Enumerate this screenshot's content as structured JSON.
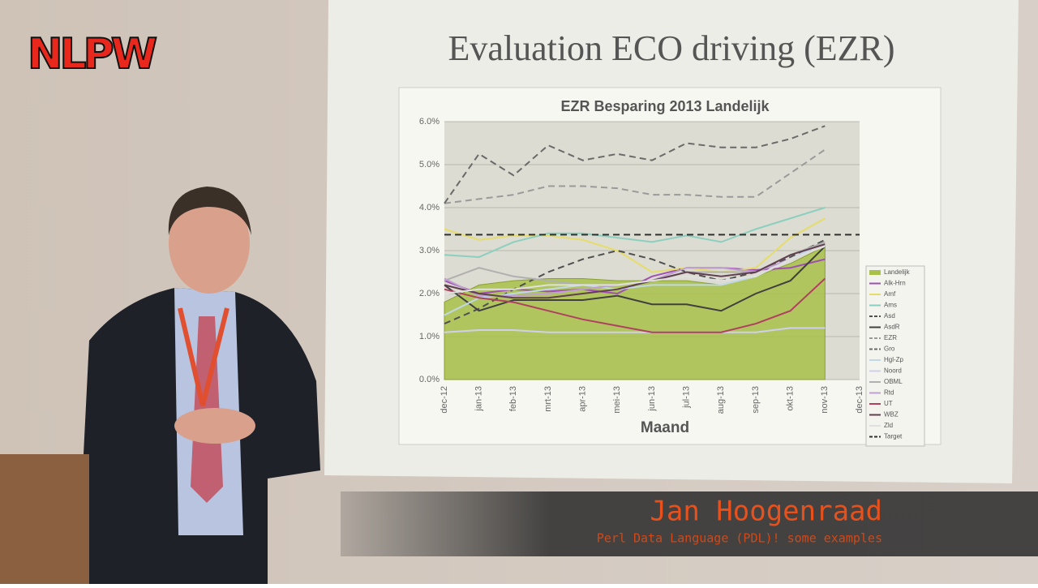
{
  "logo": "NLPW",
  "slide_title": "Evaluation ECO driving  (EZR)",
  "caption": {
    "name": "Jan Hoogenraad",
    "subtitle": "Perl Data Language (PDL)! some examples"
  },
  "chart_data": {
    "type": "line",
    "title": "EZR Besparing 2013 Landelijk",
    "x_label": "Maand",
    "categories": [
      "dec-12",
      "jan-13",
      "feb-13",
      "mrt-13",
      "apr-13",
      "mei-13",
      "jun-13",
      "jul-13",
      "aug-13",
      "sep-13",
      "okt-13",
      "nov-13",
      "dec-13"
    ],
    "ylim": [
      0,
      6
    ],
    "yticks": [
      {
        "value": 0,
        "label": "0.0%"
      },
      {
        "value": 1,
        "label": "1.0%"
      },
      {
        "value": 2,
        "label": "2.0%"
      },
      {
        "value": 3,
        "label": "3.0%"
      },
      {
        "value": 4,
        "label": "4.0%"
      },
      {
        "value": 5,
        "label": "5.0%"
      },
      {
        "value": 6,
        "label": "6.0%"
      }
    ],
    "grid": true,
    "series": [
      {
        "name": "Landelijk",
        "color": "#a9c14b",
        "area": true,
        "values": [
          1.8,
          2.2,
          2.3,
          2.35,
          2.35,
          2.3,
          2.3,
          2.3,
          2.2,
          2.4,
          2.7,
          3.1,
          null
        ]
      },
      {
        "name": "Alk-Hrn",
        "color": "#a050b0",
        "values": [
          2.3,
          2.0,
          2.1,
          2.05,
          2.1,
          2.0,
          2.4,
          2.6,
          2.6,
          2.55,
          2.6,
          2.8,
          null
        ]
      },
      {
        "name": "Amf",
        "color": "#e6dc6a",
        "values": [
          3.5,
          3.25,
          3.35,
          3.35,
          3.25,
          3.0,
          2.5,
          2.6,
          2.5,
          2.6,
          3.3,
          3.75,
          null
        ]
      },
      {
        "name": "Ams",
        "color": "#8ccfbf",
        "values": [
          2.9,
          2.85,
          3.2,
          3.4,
          3.4,
          3.3,
          3.2,
          3.35,
          3.2,
          3.5,
          3.75,
          4.0,
          null
        ]
      },
      {
        "name": "Asd",
        "color": "#505050",
        "dashed": true,
        "values": [
          1.3,
          1.65,
          2.1,
          2.5,
          2.8,
          3.0,
          2.8,
          2.5,
          2.3,
          2.5,
          2.85,
          3.25,
          null
        ]
      },
      {
        "name": "AsdR",
        "color": "#404040",
        "values": [
          2.2,
          1.6,
          1.85,
          1.85,
          1.85,
          1.95,
          1.75,
          1.75,
          1.6,
          2.0,
          2.3,
          3.1,
          null
        ]
      },
      {
        "name": "EZR",
        "color": "#9a9a9a",
        "dashed": true,
        "values": [
          4.1,
          4.2,
          4.3,
          4.5,
          4.5,
          4.45,
          4.3,
          4.3,
          4.25,
          4.25,
          4.8,
          5.35,
          null
        ]
      },
      {
        "name": "Gro",
        "color": "#6a6a6a",
        "dashed": true,
        "values": [
          4.1,
          5.25,
          4.75,
          5.45,
          5.1,
          5.25,
          5.1,
          5.5,
          5.4,
          5.4,
          5.6,
          5.9,
          null
        ]
      },
      {
        "name": "Hgl-Zp",
        "color": "#c0d8e8",
        "values": [
          1.5,
          1.9,
          2.0,
          2.1,
          2.2,
          2.1,
          2.2,
          2.2,
          2.2,
          2.4,
          2.8,
          3.2,
          null
        ]
      },
      {
        "name": "Noord",
        "color": "#cfd0ee",
        "values": [
          1.1,
          1.15,
          1.15,
          1.1,
          1.1,
          1.1,
          1.1,
          1.1,
          1.1,
          1.1,
          1.2,
          1.2,
          null
        ]
      },
      {
        "name": "OBML",
        "color": "#b0b0b0",
        "values": [
          2.3,
          2.6,
          2.4,
          2.3,
          2.2,
          2.2,
          2.3,
          2.5,
          2.5,
          2.5,
          2.9,
          3.2,
          null
        ]
      },
      {
        "name": "Rtd",
        "color": "#c0a0d0",
        "values": [
          2.35,
          1.95,
          1.95,
          2.0,
          2.1,
          2.2,
          2.3,
          2.6,
          2.6,
          2.5,
          2.8,
          3.1,
          null
        ]
      },
      {
        "name": "UT",
        "color": "#b04060",
        "values": [
          2.1,
          1.9,
          1.8,
          1.6,
          1.4,
          1.25,
          1.1,
          1.1,
          1.1,
          1.3,
          1.6,
          2.35,
          null
        ]
      },
      {
        "name": "WBZ",
        "color": "#604050",
        "values": [
          2.2,
          2.0,
          1.9,
          1.9,
          2.0,
          2.1,
          2.3,
          2.5,
          2.4,
          2.5,
          2.9,
          3.15,
          null
        ]
      },
      {
        "name": "Zld",
        "color": "#e0e0e0",
        "values": [
          2.0,
          2.1,
          2.1,
          2.2,
          2.2,
          2.2,
          2.3,
          2.4,
          2.3,
          2.4,
          2.8,
          3.1,
          null
        ]
      },
      {
        "name": "Target",
        "color": "#303030",
        "dashed": true,
        "values": [
          3.37,
          3.37,
          3.37,
          3.37,
          3.37,
          3.37,
          3.37,
          3.37,
          3.37,
          3.37,
          3.37,
          3.37,
          3.37
        ]
      }
    ]
  }
}
